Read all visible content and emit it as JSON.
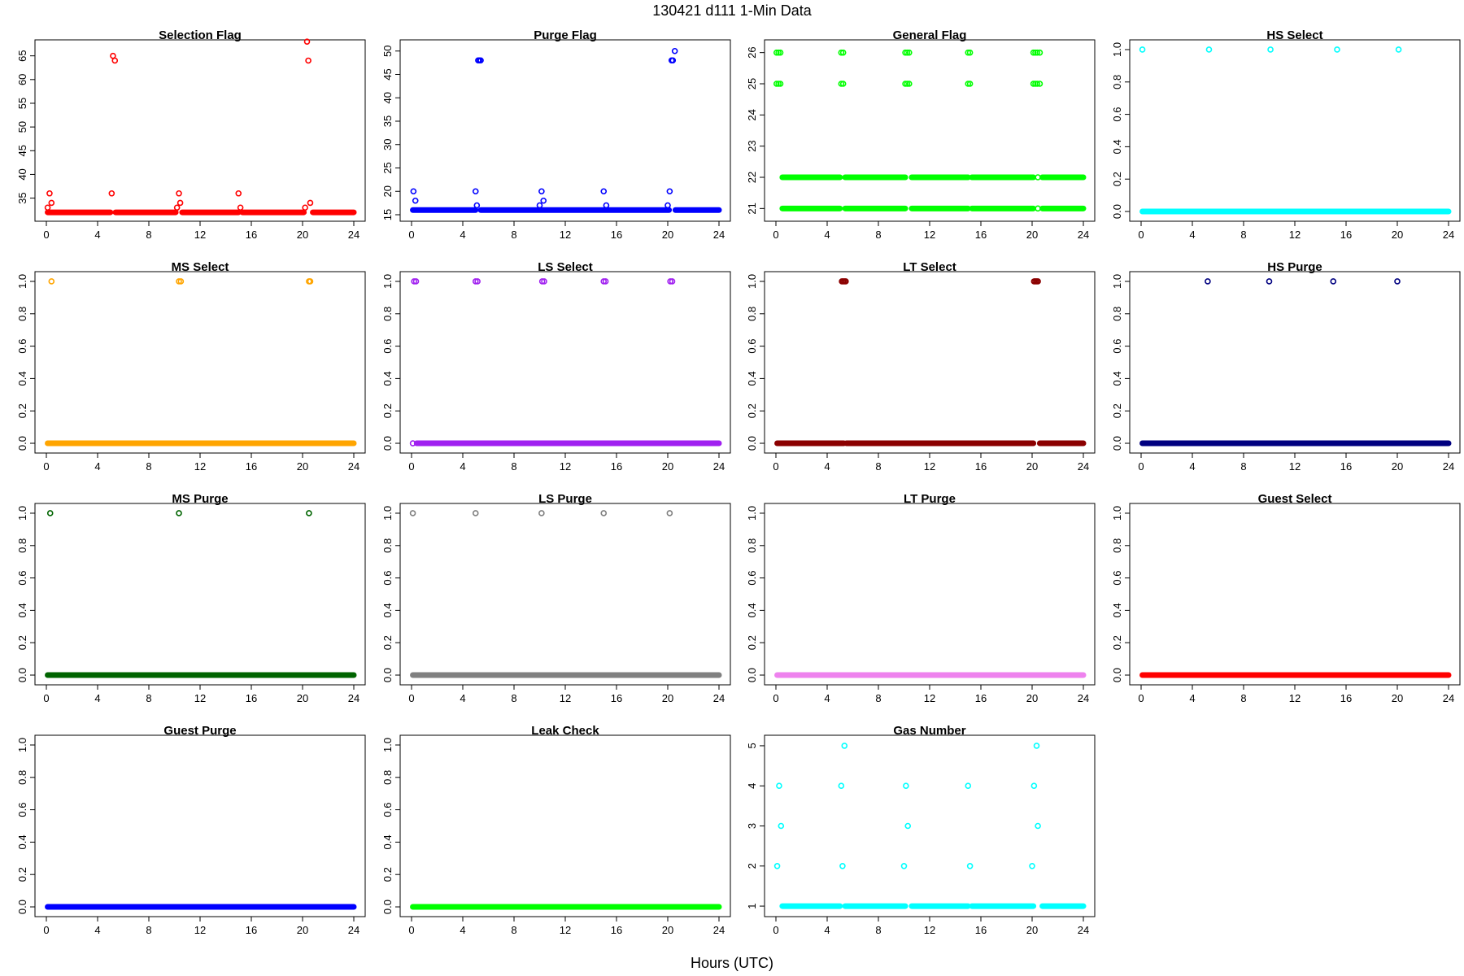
{
  "page": {
    "title": "130421    d111    1-Min Data",
    "xlabel": "Hours (UTC)"
  },
  "chart_data": [
    {
      "type": "scatter",
      "title": "Selection Flag",
      "color": "#ff0000",
      "xlim": [
        0,
        24
      ],
      "ylim": [
        31.5,
        67
      ],
      "xticks": [
        "0",
        "4",
        "8",
        "12",
        "16",
        "20",
        "24"
      ],
      "yticks": [
        "35",
        "40",
        "45",
        "50",
        "55",
        "60",
        "65"
      ],
      "baseline": {
        "y": 32,
        "segments": [
          [
            0.1,
            5.0
          ],
          [
            5.4,
            10.1
          ],
          [
            10.6,
            15.0
          ],
          [
            15.3,
            20.1
          ],
          [
            20.8,
            24
          ]
        ]
      },
      "points": [
        [
          0.1,
          33
        ],
        [
          0.25,
          36
        ],
        [
          0.4,
          34
        ],
        [
          5.1,
          36
        ],
        [
          5.2,
          65
        ],
        [
          5.35,
          64
        ],
        [
          10.2,
          33
        ],
        [
          10.35,
          36
        ],
        [
          10.45,
          34
        ],
        [
          15.0,
          36
        ],
        [
          15.15,
          33
        ],
        [
          20.2,
          33
        ],
        [
          20.35,
          68
        ],
        [
          20.45,
          64
        ],
        [
          20.6,
          34
        ]
      ]
    },
    {
      "type": "scatter",
      "title": "Purge Flag",
      "color": "#0000ff",
      "xlim": [
        0,
        24
      ],
      "ylim": [
        15,
        51
      ],
      "xticks": [
        "0",
        "4",
        "8",
        "12",
        "16",
        "20",
        "24"
      ],
      "yticks": [
        "15",
        "20",
        "25",
        "30",
        "35",
        "40",
        "45",
        "50"
      ],
      "baseline": {
        "y": 16,
        "segments": [
          [
            0.1,
            5.0
          ],
          [
            5.4,
            20.1
          ],
          [
            20.6,
            24
          ]
        ]
      },
      "points": [
        [
          0.15,
          20
        ],
        [
          0.3,
          18
        ],
        [
          5.0,
          20
        ],
        [
          5.1,
          17
        ],
        [
          5.2,
          48
        ],
        [
          5.3,
          48
        ],
        [
          5.4,
          48
        ],
        [
          10.0,
          17
        ],
        [
          10.15,
          20
        ],
        [
          10.3,
          18
        ],
        [
          15.0,
          20
        ],
        [
          15.2,
          17
        ],
        [
          20.0,
          17
        ],
        [
          20.15,
          20
        ],
        [
          20.3,
          48
        ],
        [
          20.4,
          48
        ],
        [
          20.55,
          50
        ]
      ]
    },
    {
      "type": "scatter",
      "title": "General Flag",
      "color": "#00ff00",
      "xlim": [
        0,
        24
      ],
      "ylim": [
        20.8,
        26.2
      ],
      "xticks": [
        "0",
        "4",
        "8",
        "12",
        "16",
        "20",
        "24"
      ],
      "yticks": [
        "21",
        "22",
        "23",
        "24",
        "25",
        "26"
      ],
      "baseline": {
        "y": 21,
        "segments": [
          [
            0.5,
            5.0
          ],
          [
            5.4,
            10.1
          ],
          [
            10.6,
            15.0
          ],
          [
            15.3,
            20.1
          ],
          [
            20.8,
            24
          ]
        ]
      },
      "baseline2": {
        "y": 22,
        "segments": [
          [
            0.5,
            5.0
          ],
          [
            5.4,
            10.1
          ],
          [
            10.6,
            15.0
          ],
          [
            15.3,
            20.1
          ],
          [
            20.8,
            24
          ]
        ]
      },
      "points": [
        [
          0.05,
          25
        ],
        [
          0.2,
          25
        ],
        [
          0.35,
          25
        ],
        [
          0.05,
          26
        ],
        [
          0.2,
          26
        ],
        [
          0.35,
          26
        ],
        [
          5.1,
          25
        ],
        [
          5.25,
          25
        ],
        [
          5.1,
          26
        ],
        [
          5.25,
          26
        ],
        [
          10.1,
          25
        ],
        [
          10.25,
          25
        ],
        [
          10.4,
          25
        ],
        [
          10.1,
          26
        ],
        [
          10.25,
          26
        ],
        [
          10.4,
          26
        ],
        [
          15.0,
          25
        ],
        [
          15.15,
          25
        ],
        [
          15.0,
          26
        ],
        [
          15.15,
          26
        ],
        [
          20.1,
          25
        ],
        [
          20.25,
          25
        ],
        [
          20.4,
          25
        ],
        [
          20.1,
          26
        ],
        [
          20.25,
          26
        ],
        [
          20.4,
          26
        ],
        [
          20.6,
          25
        ],
        [
          20.6,
          26
        ],
        [
          20.45,
          22
        ],
        [
          20.45,
          21
        ]
      ]
    },
    {
      "type": "scatter",
      "title": "HS Select",
      "color": "#00ffff",
      "xlim": [
        0,
        24
      ],
      "ylim": [
        -0.02,
        1.02
      ],
      "xticks": [
        "0",
        "4",
        "8",
        "12",
        "16",
        "20",
        "24"
      ],
      "yticks": [
        "0.0",
        "0.2",
        "0.4",
        "0.6",
        "0.8",
        "1.0"
      ],
      "baseline": {
        "y": 0,
        "segments": [
          [
            0.1,
            24
          ]
        ]
      },
      "points": [
        [
          0.1,
          1
        ],
        [
          5.3,
          1
        ],
        [
          10.1,
          1
        ],
        [
          15.3,
          1
        ],
        [
          20.1,
          1
        ]
      ]
    },
    {
      "type": "scatter",
      "title": "MS Select",
      "color": "#ffa500",
      "xlim": [
        0,
        24
      ],
      "ylim": [
        -0.02,
        1.02
      ],
      "xticks": [
        "0",
        "4",
        "8",
        "12",
        "16",
        "20",
        "24"
      ],
      "yticks": [
        "0.0",
        "0.2",
        "0.4",
        "0.6",
        "0.8",
        "1.0"
      ],
      "baseline": {
        "y": 0,
        "segments": [
          [
            0.1,
            24
          ]
        ]
      },
      "points": [
        [
          0.4,
          1
        ],
        [
          10.35,
          1
        ],
        [
          10.5,
          1
        ],
        [
          20.5,
          1
        ],
        [
          20.6,
          1
        ]
      ]
    },
    {
      "type": "scatter",
      "title": "LS Select",
      "color": "#a020f0",
      "xlim": [
        0,
        24
      ],
      "ylim": [
        -0.02,
        1.02
      ],
      "xticks": [
        "0",
        "4",
        "8",
        "12",
        "16",
        "20",
        "24"
      ],
      "yticks": [
        "0.0",
        "0.2",
        "0.4",
        "0.6",
        "0.8",
        "1.0"
      ],
      "baseline": {
        "y": 0,
        "segments": [
          [
            0.4,
            24
          ]
        ]
      },
      "points": [
        [
          0.1,
          0
        ],
        [
          0.2,
          1
        ],
        [
          0.35,
          1
        ],
        [
          5.0,
          1
        ],
        [
          5.15,
          1
        ],
        [
          10.2,
          1
        ],
        [
          10.35,
          1
        ],
        [
          15.0,
          1
        ],
        [
          15.15,
          1
        ],
        [
          20.2,
          1
        ],
        [
          20.35,
          1
        ]
      ]
    },
    {
      "type": "scatter",
      "title": "LT Select",
      "color": "#8b0000",
      "xlim": [
        0,
        24
      ],
      "ylim": [
        -0.02,
        1.02
      ],
      "xticks": [
        "0",
        "4",
        "8",
        "12",
        "16",
        "20",
        "24"
      ],
      "yticks": [
        "0.0",
        "0.2",
        "0.4",
        "0.6",
        "0.8",
        "1.0"
      ],
      "baseline": {
        "y": 0,
        "segments": [
          [
            0.1,
            5.3
          ],
          [
            5.5,
            20.1
          ],
          [
            20.6,
            24
          ]
        ]
      },
      "points": [
        [
          5.15,
          1
        ],
        [
          5.25,
          1
        ],
        [
          5.35,
          1
        ],
        [
          5.45,
          1
        ],
        [
          20.15,
          1
        ],
        [
          20.25,
          1
        ],
        [
          20.35,
          1
        ],
        [
          20.45,
          1
        ]
      ]
    },
    {
      "type": "scatter",
      "title": "HS Purge",
      "color": "#000080",
      "xlim": [
        0,
        24
      ],
      "ylim": [
        -0.02,
        1.02
      ],
      "xticks": [
        "0",
        "4",
        "8",
        "12",
        "16",
        "20",
        "24"
      ],
      "yticks": [
        "0.0",
        "0.2",
        "0.4",
        "0.6",
        "0.8",
        "1.0"
      ],
      "baseline": {
        "y": 0,
        "segments": [
          [
            0.1,
            24
          ]
        ]
      },
      "points": [
        [
          5.2,
          1
        ],
        [
          10.0,
          1
        ],
        [
          15.0,
          1
        ],
        [
          20.0,
          1
        ]
      ]
    },
    {
      "type": "scatter",
      "title": "MS Purge",
      "color": "#006400",
      "xlim": [
        0,
        24
      ],
      "ylim": [
        -0.02,
        1.02
      ],
      "xticks": [
        "0",
        "4",
        "8",
        "12",
        "16",
        "20",
        "24"
      ],
      "yticks": [
        "0.0",
        "0.2",
        "0.4",
        "0.6",
        "0.8",
        "1.0"
      ],
      "baseline": {
        "y": 0,
        "segments": [
          [
            0.1,
            24
          ]
        ]
      },
      "points": [
        [
          0.3,
          1
        ],
        [
          10.35,
          1
        ],
        [
          20.5,
          1
        ]
      ]
    },
    {
      "type": "scatter",
      "title": "LS Purge",
      "color": "#808080",
      "xlim": [
        0,
        24
      ],
      "ylim": [
        -0.02,
        1.02
      ],
      "xticks": [
        "0",
        "4",
        "8",
        "12",
        "16",
        "20",
        "24"
      ],
      "yticks": [
        "0.0",
        "0.2",
        "0.4",
        "0.6",
        "0.8",
        "1.0"
      ],
      "baseline": {
        "y": 0,
        "segments": [
          [
            0.1,
            24
          ]
        ]
      },
      "points": [
        [
          0.1,
          1
        ],
        [
          5.0,
          1
        ],
        [
          10.15,
          1
        ],
        [
          15.0,
          1
        ],
        [
          20.15,
          1
        ]
      ]
    },
    {
      "type": "scatter",
      "title": "LT Purge",
      "color": "#ee82ee",
      "xlim": [
        0,
        24
      ],
      "ylim": [
        -0.02,
        1.02
      ],
      "xticks": [
        "0",
        "4",
        "8",
        "12",
        "16",
        "20",
        "24"
      ],
      "yticks": [
        "0.0",
        "0.2",
        "0.4",
        "0.6",
        "0.8",
        "1.0"
      ],
      "baseline": {
        "y": 0,
        "segments": [
          [
            0.1,
            24
          ]
        ]
      },
      "points": []
    },
    {
      "type": "scatter",
      "title": "Guest Select",
      "color": "#ff0000",
      "xlim": [
        0,
        24
      ],
      "ylim": [
        -0.02,
        1.02
      ],
      "xticks": [
        "0",
        "4",
        "8",
        "12",
        "16",
        "20",
        "24"
      ],
      "yticks": [
        "0.0",
        "0.2",
        "0.4",
        "0.6",
        "0.8",
        "1.0"
      ],
      "baseline": {
        "y": 0,
        "segments": [
          [
            0.1,
            24
          ]
        ]
      },
      "points": []
    },
    {
      "type": "scatter",
      "title": "Guest Purge",
      "color": "#0000ff",
      "xlim": [
        0,
        24
      ],
      "ylim": [
        -0.02,
        1.02
      ],
      "xticks": [
        "0",
        "4",
        "8",
        "12",
        "16",
        "20",
        "24"
      ],
      "yticks": [
        "0.0",
        "0.2",
        "0.4",
        "0.6",
        "0.8",
        "1.0"
      ],
      "baseline": {
        "y": 0,
        "segments": [
          [
            0.1,
            24
          ]
        ]
      },
      "points": []
    },
    {
      "type": "scatter",
      "title": "Leak Check",
      "color": "#00ff00",
      "xlim": [
        0,
        24
      ],
      "ylim": [
        -0.02,
        1.02
      ],
      "xticks": [
        "0",
        "4",
        "8",
        "12",
        "16",
        "20",
        "24"
      ],
      "yticks": [
        "0.0",
        "0.2",
        "0.4",
        "0.6",
        "0.8",
        "1.0"
      ],
      "baseline": {
        "y": 0,
        "segments": [
          [
            0.1,
            24
          ]
        ]
      },
      "points": []
    },
    {
      "type": "scatter",
      "title": "Gas Number",
      "color": "#00ffff",
      "xlim": [
        0,
        24
      ],
      "ylim": [
        0.9,
        5.1
      ],
      "xticks": [
        "0",
        "4",
        "8",
        "12",
        "16",
        "20",
        "24"
      ],
      "yticks": [
        "1",
        "2",
        "3",
        "4",
        "5"
      ],
      "baseline": {
        "y": 1,
        "segments": [
          [
            0.5,
            5.0
          ],
          [
            5.4,
            10.1
          ],
          [
            10.6,
            15.0
          ],
          [
            15.3,
            20.1
          ],
          [
            20.8,
            24
          ]
        ]
      },
      "points": [
        [
          0.1,
          2
        ],
        [
          0.25,
          4
        ],
        [
          0.4,
          3
        ],
        [
          5.1,
          4
        ],
        [
          5.2,
          2
        ],
        [
          5.35,
          5
        ],
        [
          10.0,
          2
        ],
        [
          10.15,
          4
        ],
        [
          10.3,
          3
        ],
        [
          15.0,
          4
        ],
        [
          15.15,
          2
        ],
        [
          20.0,
          2
        ],
        [
          20.15,
          4
        ],
        [
          20.35,
          5
        ],
        [
          20.45,
          3
        ]
      ]
    }
  ]
}
